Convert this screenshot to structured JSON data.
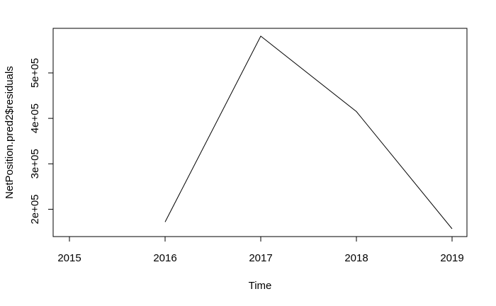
{
  "chart_data": {
    "type": "line",
    "xlabel": "Time",
    "ylabel": "NetPosition.pred2$residuals",
    "x": [
      2016,
      2017,
      2018,
      2019
    ],
    "series": [
      {
        "values": [
          172000,
          581000,
          415000,
          157000
        ]
      }
    ],
    "xlim": [
      2015,
      2019
    ],
    "ylim": [
      157000,
      581000
    ],
    "x_ticks": [
      2015,
      2016,
      2017,
      2018,
      2019
    ],
    "x_tick_labels": [
      "2015",
      "2016",
      "2017",
      "2018",
      "2019"
    ],
    "y_ticks": [
      200000,
      300000,
      400000,
      500000
    ],
    "y_tick_labels": [
      "2e+05",
      "3e+05",
      "4e+05",
      "5e+05"
    ],
    "line_color": "#000000",
    "grid": false,
    "legend": "none"
  }
}
